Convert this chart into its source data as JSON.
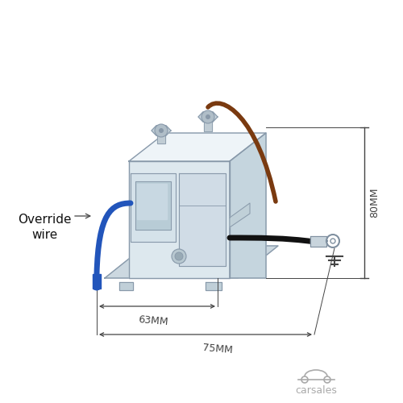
{
  "bg_color": "#ffffff",
  "outline_color": "#8899aa",
  "face_front": "#dde8ee",
  "face_top": "#eef4f8",
  "face_right": "#c5d5de",
  "face_dark": "#aabbcc",
  "base_color": "#ccd8e0",
  "blue_wire": "#2255bb",
  "brown_wire": "#7a3a10",
  "black_wire": "#111111",
  "dim_color": "#444444",
  "text_color": "#111111",
  "gray_light": "#b0bec5",
  "gray_mid": "#90a4ae",
  "gray_dark": "#607d8b",
  "carsales_color": "#aaaaaa",
  "override_label": "Override\nwire",
  "dim_63": "63MM",
  "dim_75": "75MM",
  "dim_80": "80MM"
}
